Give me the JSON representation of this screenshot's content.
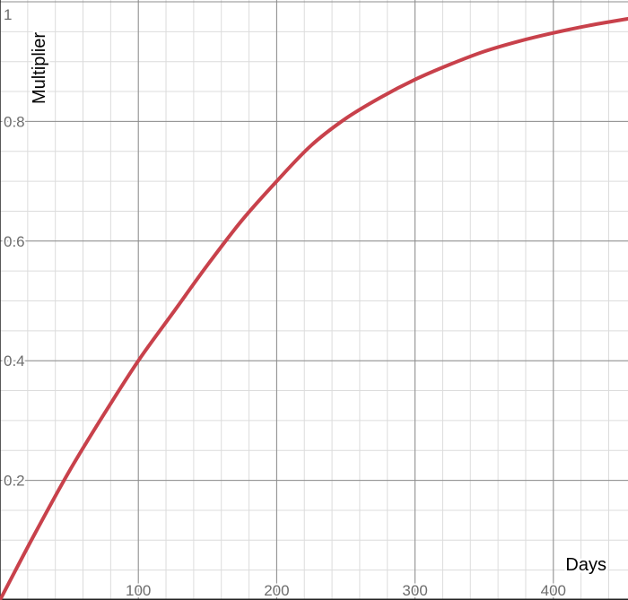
{
  "chart_data": {
    "type": "line",
    "title": "",
    "xlabel": "Days",
    "ylabel": "Multiplier",
    "xlim": [
      0,
      455
    ],
    "ylim": [
      0,
      1
    ],
    "grid": true,
    "x_major_ticks": [
      100,
      200,
      300,
      400
    ],
    "x_minor_step": 20,
    "y_major_ticks": [
      0.2,
      0.4,
      0.6,
      0.8,
      1
    ],
    "y_minor_step": 0.05,
    "x_tick_labels": [
      "100",
      "200",
      "300",
      "400"
    ],
    "y_tick_labels": [
      "0.2",
      "0.4",
      "0.6",
      "0.8",
      "1"
    ],
    "series": [
      {
        "color": "#c8414b",
        "x": [
          0,
          25,
          50,
          75,
          100,
          125,
          150,
          175,
          200,
          225,
          250,
          275,
          300,
          325,
          350,
          375,
          400,
          425,
          455
        ],
        "y": [
          0,
          0.11,
          0.215,
          0.31,
          0.4,
          0.48,
          0.56,
          0.635,
          0.7,
          0.76,
          0.805,
          0.84,
          0.87,
          0.895,
          0.917,
          0.934,
          0.948,
          0.96,
          0.972
        ]
      }
    ]
  }
}
